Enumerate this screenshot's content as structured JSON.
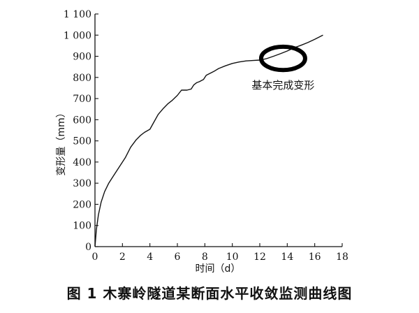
{
  "caption": "图 1   木寨岭隧道某断面水平收敛监测曲线图",
  "chart_data": {
    "type": "line",
    "xlabel": "时间（d）",
    "ylabel": "变形量（mm）",
    "xlim": [
      0,
      18
    ],
    "ylim": [
      0,
      1100
    ],
    "xticks": [
      0,
      2,
      4,
      6,
      8,
      10,
      12,
      14,
      16,
      18
    ],
    "yticks": [
      0,
      100,
      200,
      300,
      400,
      500,
      600,
      700,
      800,
      900,
      1000,
      1100
    ],
    "xtick_labels": [
      "0",
      "2",
      "4",
      "6",
      "8",
      "10",
      "12",
      "14",
      "16",
      "18"
    ],
    "ytick_labels": [
      "0",
      "100",
      "200",
      "300",
      "400",
      "500",
      "600",
      "700",
      "800",
      "900",
      "1 000",
      "1 100"
    ],
    "grid": false,
    "line_color": "#111111",
    "series": [
      {
        "x": [
          0,
          0.1,
          0.25,
          0.45,
          0.7,
          1.0,
          1.4,
          1.8,
          2.2,
          2.6,
          3.0,
          3.3,
          3.6,
          4.0,
          4.3,
          4.6,
          5.0,
          5.3,
          5.6,
          6.0,
          6.3,
          6.5,
          6.7,
          7.0,
          7.2,
          7.4,
          7.6,
          7.9,
          8.1,
          8.4,
          8.7,
          9.0,
          9.5,
          10.0,
          10.5,
          11.0,
          11.5,
          12.0,
          12.5,
          13.0,
          13.5,
          14.0,
          14.5,
          15.0,
          15.5,
          16.0,
          16.6
        ],
        "y": [
          0,
          80,
          150,
          210,
          260,
          300,
          340,
          380,
          420,
          470,
          505,
          525,
          540,
          555,
          590,
          625,
          655,
          675,
          690,
          715,
          740,
          740,
          740,
          745,
          765,
          775,
          780,
          790,
          810,
          820,
          830,
          842,
          855,
          866,
          873,
          878,
          880,
          882,
          889,
          900,
          912,
          925,
          940,
          952,
          965,
          980,
          1000
        ]
      }
    ],
    "annotations": [
      {
        "type": "ellipse",
        "text": "基本完成变形",
        "cx": 13.7,
        "cy": 890,
        "rx": 1.6,
        "ry": 55
      }
    ]
  }
}
